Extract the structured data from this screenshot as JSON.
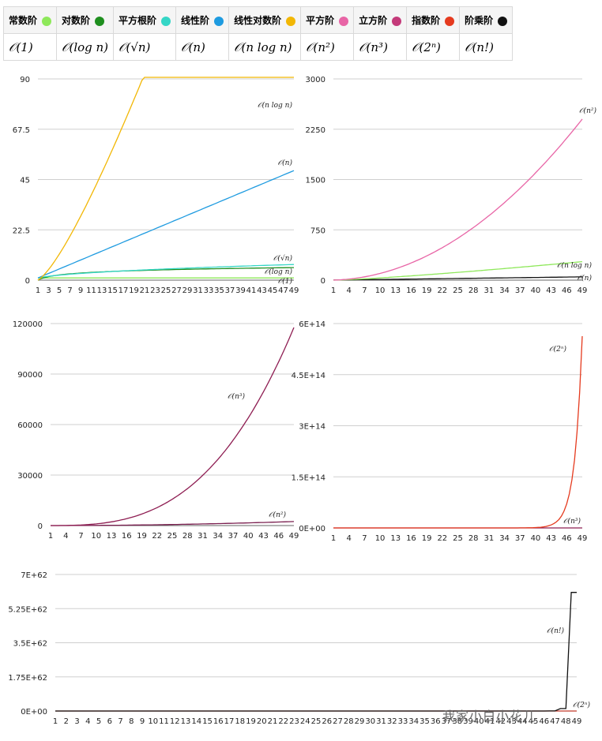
{
  "legend": [
    {
      "label": "常数阶",
      "notation": "𝒪(1)",
      "color": "#8ee85a",
      "icon": "green-dot-icon"
    },
    {
      "label": "对数阶",
      "notation": "𝒪(log n)",
      "color": "#1f8f1f",
      "icon": "dark-green-dot-icon"
    },
    {
      "label": "平方根阶",
      "notation": "𝒪(√n)",
      "color": "#35d6c6",
      "icon": "teal-dot-icon"
    },
    {
      "label": "线性阶",
      "notation": "𝒪(n)",
      "color": "#1e9be0",
      "icon": "blue-dot-icon"
    },
    {
      "label": "线性对数阶",
      "notation": "𝒪(n log n)",
      "color": "#f2b705",
      "icon": "yellow-dot-icon"
    },
    {
      "label": "平方阶",
      "notation": "𝒪(n²)",
      "color": "#e865a6",
      "icon": "pink-dot-icon"
    },
    {
      "label": "立方阶",
      "notation": "𝒪(n³)",
      "color": "#c43a7a",
      "icon": "magenta-dot-icon"
    },
    {
      "label": "指数阶",
      "notation": "𝒪(2ⁿ)",
      "color": "#e53a1e",
      "icon": "red-dot-icon"
    },
    {
      "label": "阶乘阶",
      "notation": "𝒪(n!)",
      "color": "#111111",
      "icon": "black-dot-icon"
    }
  ],
  "watermark": "我家小白小花儿",
  "chart_data": [
    {
      "type": "line",
      "x_range": [
        1,
        49
      ],
      "ylim": [
        0,
        90
      ],
      "yticks": [
        "0",
        "22.5",
        "45",
        "67.5",
        "90"
      ],
      "series": [
        {
          "name": "𝒪(1)",
          "fn": "const",
          "color": "#8ee85a"
        },
        {
          "name": "𝒪(log n)",
          "fn": "log",
          "color": "#1f8f1f"
        },
        {
          "name": "𝒪(√n)",
          "fn": "sqrt",
          "color": "#35d6c6"
        },
        {
          "name": "𝒪(n)",
          "fn": "linear",
          "color": "#1e9be0"
        },
        {
          "name": "𝒪(n log n)",
          "fn": "nlogn",
          "color": "#f2b705"
        }
      ]
    },
    {
      "type": "line",
      "x_range": [
        1,
        49
      ],
      "ylim": [
        0,
        3000
      ],
      "yticks": [
        "0",
        "750",
        "1500",
        "2250",
        "3000"
      ],
      "series": [
        {
          "name": "𝒪(n)",
          "fn": "linear",
          "color": "#111111"
        },
        {
          "name": "𝒪(n log n)",
          "fn": "nlogn",
          "color": "#8ee85a"
        },
        {
          "name": "𝒪(n²)",
          "fn": "square",
          "color": "#e865a6"
        }
      ]
    },
    {
      "type": "line",
      "x_range": [
        1,
        49
      ],
      "ylim": [
        0,
        120000
      ],
      "yticks": [
        "0",
        "30000",
        "60000",
        "90000",
        "120000"
      ],
      "series": [
        {
          "name": "𝒪(n²)",
          "fn": "square",
          "color": "#7a1f4f"
        },
        {
          "name": "𝒪(n³)",
          "fn": "cube",
          "color": "#8e1d52"
        }
      ]
    },
    {
      "type": "line",
      "x_range": [
        1,
        49
      ],
      "ylim": [
        0,
        600000000000000.0
      ],
      "yticks": [
        "0E+00",
        "1.5E+14",
        "3E+14",
        "4.5E+14",
        "6E+14"
      ],
      "series": [
        {
          "name": "𝒪(n³)",
          "fn": "cube",
          "color": "#8e1d52"
        },
        {
          "name": "𝒪(2ⁿ)",
          "fn": "exp2",
          "color": "#e53a1e"
        }
      ]
    },
    {
      "type": "line",
      "x_range": [
        1,
        49
      ],
      "ylim": [
        0,
        7e+62
      ],
      "yticks": [
        "0E+00",
        "1.75E+62",
        "3.5E+62",
        "5.25E+62",
        "7E+62"
      ],
      "series": [
        {
          "name": "𝒪(2ⁿ)",
          "fn": "exp2",
          "color": "#c0392b"
        },
        {
          "name": "𝒪(n!)",
          "fn": "fact",
          "color": "#111111"
        }
      ]
    }
  ]
}
